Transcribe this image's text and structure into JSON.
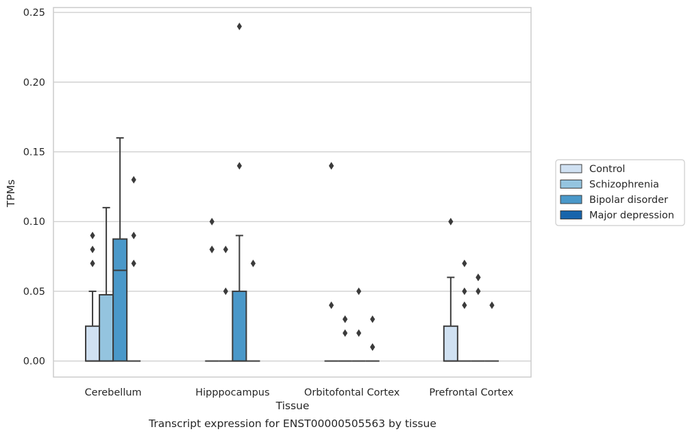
{
  "chart_data": {
    "type": "box",
    "caption": "Transcript expression for ENST00000505563 by tissue",
    "xlabel": "Tissue",
    "ylabel": "TPMs",
    "ylim": [
      -0.0115,
      0.2535
    ],
    "yticks": [
      "0.00",
      "0.05",
      "0.10",
      "0.15",
      "0.20",
      "0.25"
    ],
    "ytick_values": [
      0,
      0.05,
      0.1,
      0.15,
      0.2,
      0.25
    ],
    "grid": "horizontal",
    "legend_position": "right",
    "categories": [
      "Cerebellum",
      "Hipppocampus",
      "Orbitofontal Cortex",
      "Prefrontal Cortex"
    ],
    "series": [
      {
        "name": "Control",
        "color": "#d0e1f2",
        "boxes": [
          {
            "q1": 0,
            "median": 0,
            "q3": 0.025,
            "whisker_low": 0,
            "whisker_high": 0.05,
            "outliers": [
              0.07,
              0.08,
              0.09
            ]
          },
          {
            "q1": 0,
            "median": 0,
            "q3": 0,
            "whisker_low": 0,
            "whisker_high": 0,
            "outliers": [
              0.08,
              0.1,
              0.08
            ]
          },
          {
            "q1": 0,
            "median": 0,
            "q3": 0,
            "whisker_low": 0,
            "whisker_high": 0,
            "outliers": [
              0.14,
              0.14,
              0.04
            ]
          },
          {
            "q1": 0,
            "median": 0,
            "q3": 0.025,
            "whisker_low": 0,
            "whisker_high": 0.06,
            "outliers": [
              0.1
            ]
          }
        ]
      },
      {
        "name": "Schizophrenia",
        "color": "#94c4df",
        "boxes": [
          {
            "q1": 0,
            "median": 0,
            "q3": 0.0475,
            "whisker_low": 0,
            "whisker_high": 0.11,
            "outliers": []
          },
          {
            "q1": 0,
            "median": 0,
            "q3": 0,
            "whisker_low": 0,
            "whisker_high": 0,
            "outliers": [
              0.05,
              0.08
            ]
          },
          {
            "q1": 0,
            "median": 0,
            "q3": 0,
            "whisker_low": 0,
            "whisker_high": 0,
            "outliers": [
              0.03,
              0.02,
              0.03
            ]
          },
          {
            "q1": 0,
            "median": 0,
            "q3": 0,
            "whisker_low": 0,
            "whisker_high": 0,
            "outliers": [
              0.07,
              0.05,
              0.04
            ]
          }
        ]
      },
      {
        "name": "Bipolar disorder",
        "color": "#4a98c9",
        "boxes": [
          {
            "q1": 0,
            "median": 0.065,
            "q3": 0.0875,
            "whisker_low": 0,
            "whisker_high": 0.16,
            "outliers": []
          },
          {
            "q1": 0,
            "median": 0,
            "q3": 0.05,
            "whisker_low": 0,
            "whisker_high": 0.09,
            "outliers": [
              0.14,
              0.24
            ]
          },
          {
            "q1": 0,
            "median": 0,
            "q3": 0,
            "whisker_low": 0,
            "whisker_high": 0,
            "outliers": [
              0.05,
              0.02
            ]
          },
          {
            "q1": 0,
            "median": 0,
            "q3": 0,
            "whisker_low": 0,
            "whisker_high": 0,
            "outliers": [
              0.06,
              0.06,
              0.05
            ]
          }
        ]
      },
      {
        "name": "Major depression",
        "color": "#1764ab",
        "boxes": [
          {
            "q1": 0,
            "median": 0,
            "q3": 0,
            "whisker_low": 0,
            "whisker_high": 0,
            "outliers": [
              0.13,
              0.09,
              0.07
            ]
          },
          {
            "q1": 0,
            "median": 0,
            "q3": 0,
            "whisker_low": 0,
            "whisker_high": 0,
            "outliers": [
              0.07
            ]
          },
          {
            "q1": 0,
            "median": 0,
            "q3": 0,
            "whisker_low": 0,
            "whisker_high": 0,
            "outliers": [
              0.03,
              0.01,
              0.01
            ]
          },
          {
            "q1": 0,
            "median": 0,
            "q3": 0,
            "whisker_low": 0,
            "whisker_high": 0,
            "outliers": [
              0.04
            ]
          }
        ]
      }
    ]
  }
}
